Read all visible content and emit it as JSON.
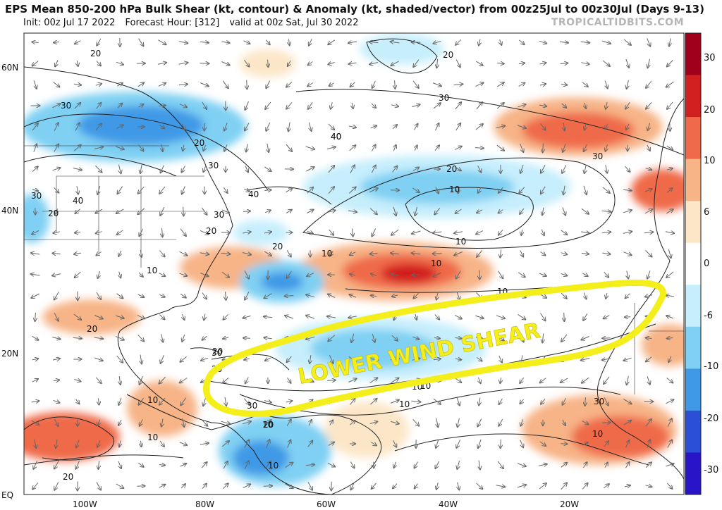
{
  "header": {
    "title": "EPS Mean 850-200 hPa Bulk Shear (kt, contour) & Anomaly (kt, shaded/vector) from 00z25Jul to 00z30Jul (Days 9-13)",
    "init": "Init: 00z Jul 17 2022",
    "forecast_hour": "Forecast Hour: [312]",
    "valid": "valid at 00z Sat, Jul 30 2022",
    "credit": "TROPICALTIDBITS.COM"
  },
  "axes": {
    "lat_labels": [
      "60N",
      "40N",
      "20N",
      "EQ"
    ],
    "lon_labels": [
      "100W",
      "80W",
      "60W",
      "40W",
      "20W"
    ]
  },
  "colorbar": {
    "ticks": [
      "30",
      "20",
      "10",
      "6",
      "0",
      "-6",
      "-10",
      "-20",
      "-30"
    ],
    "colors": [
      "#a0001a",
      "#d21f1f",
      "#ef6a4a",
      "#f7b487",
      "#fce6c8",
      "#ffffff",
      "#c6eefc",
      "#7fd0f3",
      "#3f99e6",
      "#2c4fd8",
      "#2a14c8"
    ]
  },
  "contour_labels": [
    "20",
    "20",
    "30",
    "30",
    "20",
    "30",
    "40",
    "30",
    "20",
    "40",
    "40",
    "30",
    "20",
    "20",
    "10",
    "10",
    "20",
    "10",
    "10",
    "10",
    "20",
    "20",
    "30",
    "20",
    "10",
    "10",
    "30",
    "20",
    "10",
    "30",
    "10",
    "10",
    "10",
    "10",
    "10",
    "20",
    "30",
    "40",
    "10",
    "20",
    "20"
  ],
  "annotation": {
    "text": "LOWER WIND SHEAR",
    "color": "#f4ee1a"
  }
}
